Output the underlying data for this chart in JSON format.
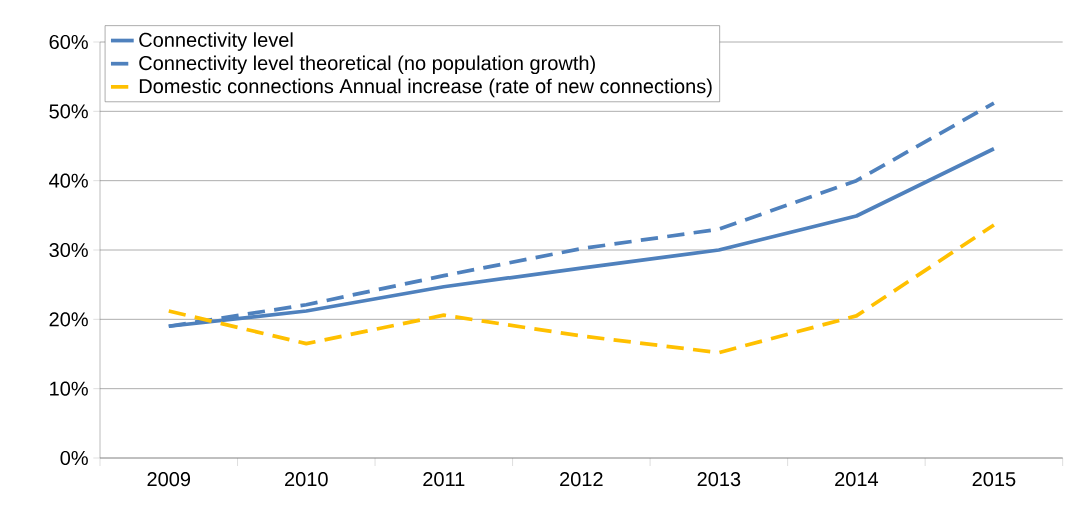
{
  "chart_data": {
    "type": "line",
    "categories": [
      "2009",
      "2010",
      "2011",
      "2012",
      "2013",
      "2014",
      "2015"
    ],
    "series": [
      {
        "name": "Connectivity level",
        "color": "#4f81bd",
        "line_style": "solid",
        "values": [
          19.0,
          21.2,
          24.7,
          27.4,
          30.0,
          34.9,
          44.6
        ]
      },
      {
        "name": "Connectivity level theoretical (no population growth)",
        "color": "#4f81bd",
        "line_style": "dashed",
        "values": [
          19.0,
          22.1,
          26.3,
          30.2,
          33.0,
          40.0,
          51.2
        ]
      },
      {
        "name": "Domestic connections Annual increase (rate  of new connections)",
        "color": "#ffc000",
        "line_style": "dashed",
        "values": [
          21.2,
          16.5,
          20.6,
          17.6,
          15.2,
          20.5,
          33.6
        ]
      }
    ],
    "ylim": [
      0,
      60
    ],
    "yticks": [
      {
        "value": 0,
        "label": "0%"
      },
      {
        "value": 10,
        "label": "10%"
      },
      {
        "value": 20,
        "label": "20%"
      },
      {
        "value": 30,
        "label": "30%"
      },
      {
        "value": 40,
        "label": "40%"
      },
      {
        "value": 50,
        "label": "50%"
      },
      {
        "value": 60,
        "label": "60%"
      }
    ],
    "grid": "y",
    "legend": "top left",
    "marker": "none"
  }
}
